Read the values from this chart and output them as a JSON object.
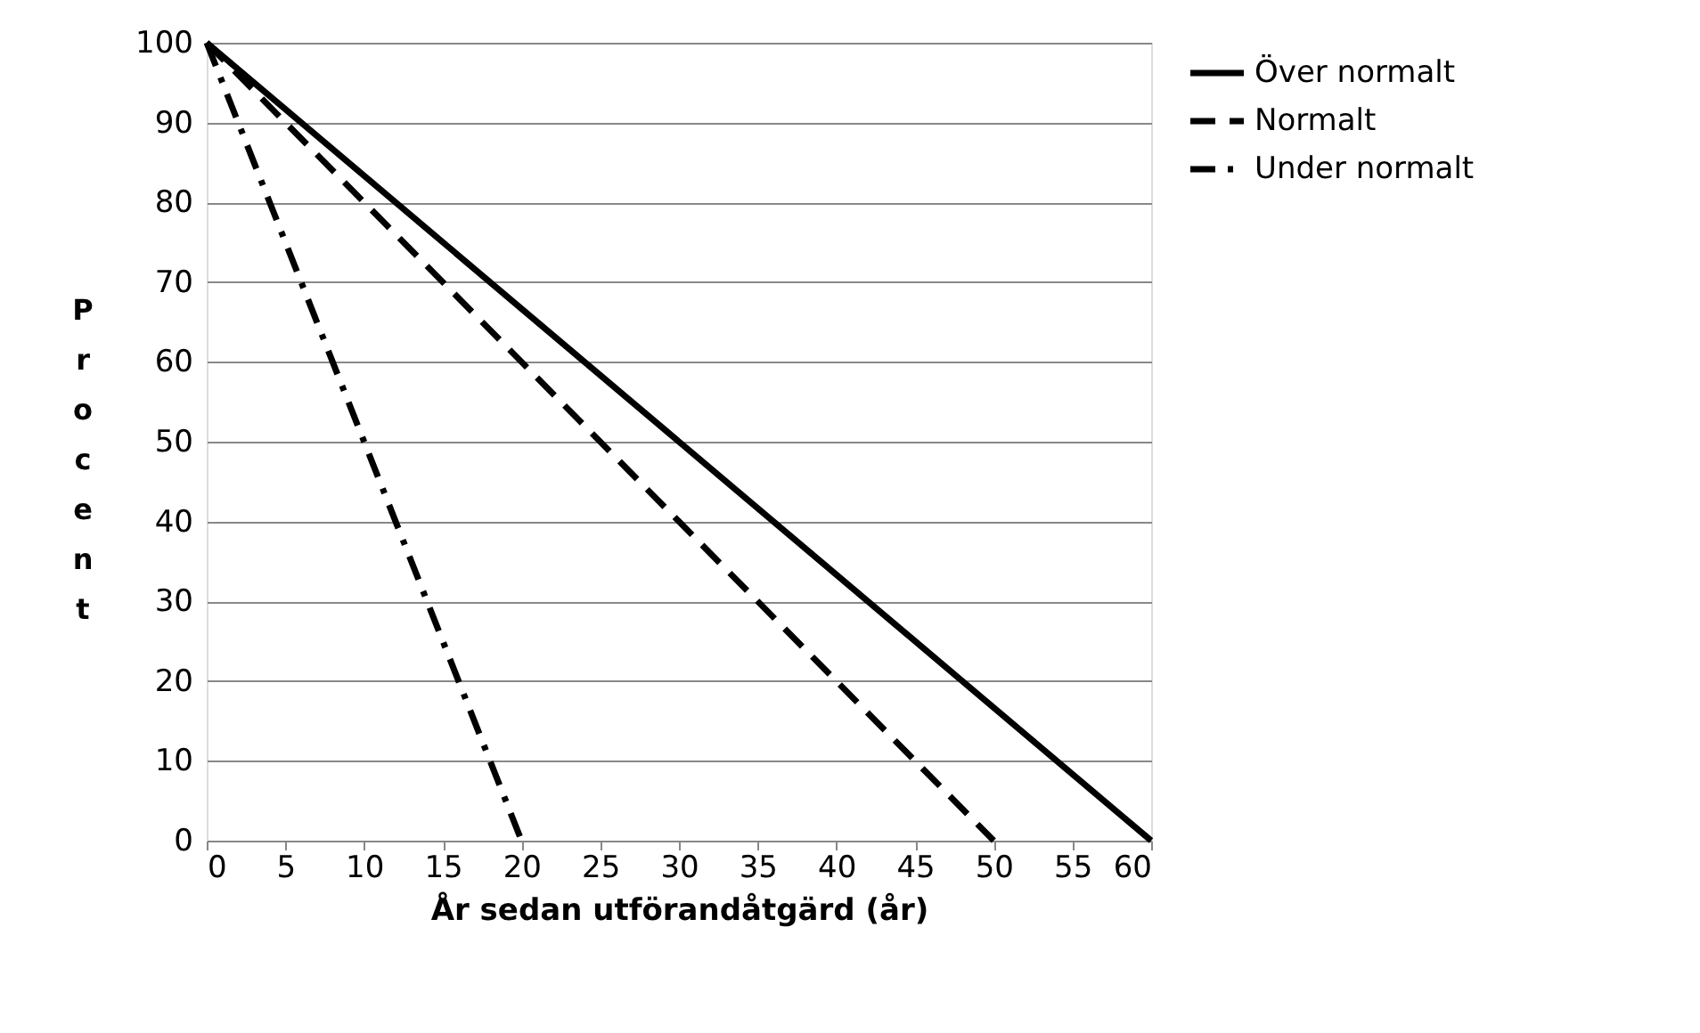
{
  "chart_data": {
    "type": "line",
    "xlabel": "År sedan utförandåtgärd (år)",
    "ylabel": "Procent",
    "xlim": [
      0,
      60
    ],
    "xticks": [
      0,
      5,
      10,
      15,
      20,
      25,
      30,
      35,
      40,
      45,
      50,
      55,
      60
    ],
    "ylim": [
      0,
      100
    ],
    "yticks": [
      0,
      10,
      20,
      30,
      40,
      50,
      60,
      70,
      80,
      90,
      100
    ],
    "grid": "y",
    "legend": "right",
    "marker": "none",
    "series": [
      {
        "name": "Över normalt",
        "color": "#000000",
        "line_style": "solid",
        "x": [
          0,
          60
        ],
        "values": [
          100,
          0
        ]
      },
      {
        "name": "Normalt",
        "color": "#000000",
        "line_style": "dashed",
        "x": [
          0,
          50
        ],
        "values": [
          100,
          0
        ]
      },
      {
        "name": "Under normalt",
        "color": "#000000",
        "line_style": "dotted",
        "x": [
          0,
          20
        ],
        "values": [
          100,
          0
        ]
      }
    ]
  }
}
